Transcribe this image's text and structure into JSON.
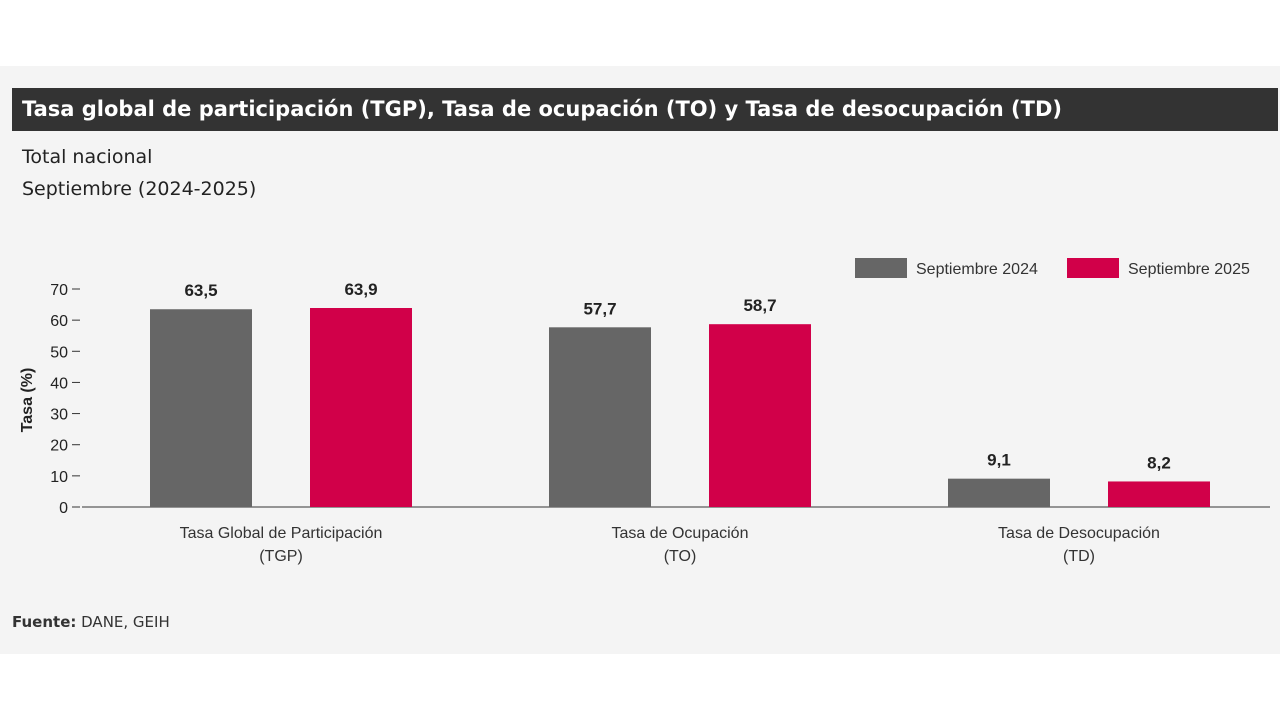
{
  "header": {
    "title": "Tasa global de participación (TGP), Tasa de ocupación (TO) y Tasa de desocupación (TD)",
    "subtitle_line1": "Total nacional",
    "subtitle_line2": "Septiembre (2024-2025)"
  },
  "footer": {
    "source_label": "Fuente:",
    "source_text": " DANE, GEIH"
  },
  "chart_data": {
    "type": "bar",
    "categories": [
      [
        "Tasa Global de Participación",
        "(TGP)"
      ],
      [
        "Tasa de Ocupación",
        "(TO)"
      ],
      [
        "Tasa de Desocupación",
        "(TD)"
      ]
    ],
    "series": [
      {
        "name": "Septiembre 2024",
        "color": "#666666",
        "values": [
          63.5,
          57.7,
          9.1
        ],
        "labels": [
          "63,5",
          "57,7",
          "9,1"
        ]
      },
      {
        "name": "Septiembre 2025",
        "color": "#d10049",
        "values": [
          63.9,
          58.7,
          8.2
        ],
        "labels": [
          "63,9",
          "58,7",
          "8,2"
        ]
      }
    ],
    "ylabel": "Tasa (%)",
    "xlabel": "",
    "ylim": [
      0,
      70
    ],
    "yticks": [
      0,
      10,
      20,
      30,
      40,
      50,
      60,
      70
    ],
    "grid": false,
    "legend_position": "top-right"
  }
}
